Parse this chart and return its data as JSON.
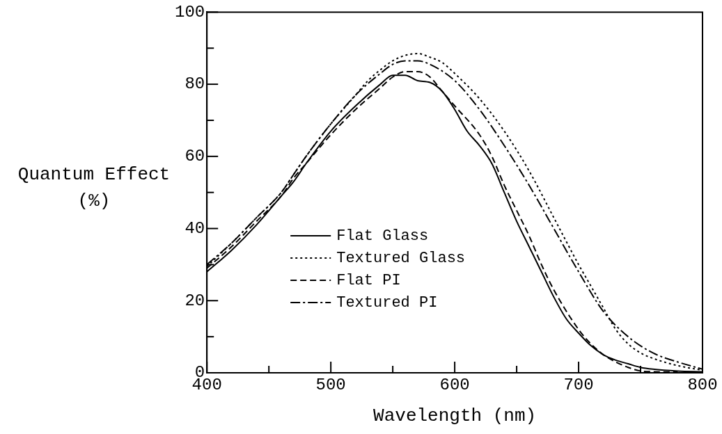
{
  "chart_data": {
    "type": "line",
    "xlabel": "Wavelength (nm)",
    "ylabel": "Quantum Effect (%)",
    "xlim": [
      400,
      800
    ],
    "ylim": [
      0,
      100
    ],
    "xticks": [
      400,
      {
        "value": 450,
        "label": null
      },
      500,
      {
        "value": 550,
        "label": null
      },
      600,
      {
        "value": 650,
        "label": null
      },
      700,
      {
        "value": 750,
        "label": null
      },
      800
    ],
    "yticks": [
      0,
      {
        "value": 10,
        "label": null
      },
      20,
      {
        "value": 30,
        "label": null
      },
      40,
      {
        "value": 50,
        "label": null
      },
      60,
      {
        "value": 70,
        "label": null
      },
      80,
      {
        "value": 90,
        "label": null
      },
      100
    ],
    "grid": false,
    "legend": "left",
    "marker": "none",
    "series": [
      {
        "name": "Flat Glass",
        "color": "#000000",
        "line_style": "solid",
        "x": [
          400,
          420,
          440,
          460,
          470,
          480,
          500,
          520,
          540,
          550,
          560,
          570,
          580,
          590,
          600,
          610,
          620,
          630,
          640,
          650,
          660,
          670,
          680,
          690,
          700,
          710,
          720,
          730,
          740,
          750,
          760,
          780,
          800
        ],
        "values": [
          28,
          34,
          41,
          49,
          53,
          58,
          67,
          74,
          80,
          82.5,
          82.5,
          81,
          80.5,
          78,
          73,
          67,
          63,
          58,
          50,
          42,
          35,
          28,
          21,
          15,
          11,
          7.5,
          5,
          3.5,
          2.5,
          1.5,
          1,
          0.5,
          0.3
        ]
      },
      {
        "name": "Textured Glass",
        "color": "#000000",
        "line_style": "dotted",
        "x": [
          400,
          420,
          440,
          460,
          470,
          480,
          500,
          520,
          530,
          540,
          550,
          560,
          570,
          580,
          590,
          600,
          620,
          640,
          660,
          680,
          700,
          710,
          720,
          730,
          740,
          750,
          760,
          780,
          800
        ],
        "values": [
          29.5,
          36,
          43,
          50,
          55,
          60,
          69,
          77,
          81,
          84,
          86.5,
          88,
          88.5,
          87.5,
          86,
          83,
          76,
          67,
          56,
          43,
          30,
          24,
          18,
          12,
          8,
          5.5,
          4,
          2,
          0.7
        ]
      },
      {
        "name": "Flat PI",
        "color": "#000000",
        "line_style": "dashed",
        "x": [
          400,
          420,
          440,
          460,
          470,
          480,
          500,
          520,
          540,
          550,
          560,
          570,
          580,
          590,
          600,
          620,
          630,
          640,
          650,
          660,
          670,
          680,
          700,
          710,
          720,
          730,
          740,
          750,
          760,
          780
        ],
        "values": [
          29,
          35,
          42,
          49,
          54,
          58,
          66,
          73,
          79,
          82,
          83.5,
          83.5,
          82,
          78,
          74,
          66,
          60,
          52,
          45,
          38,
          30,
          23,
          12,
          8,
          5,
          3,
          1.5,
          0.5,
          0.3,
          0.2
        ]
      },
      {
        "name": "Textured PI",
        "color": "#000000",
        "line_style": "dashdot",
        "x": [
          400,
          420,
          440,
          460,
          470,
          480,
          500,
          520,
          540,
          550,
          560,
          570,
          580,
          600,
          620,
          640,
          660,
          680,
          700,
          720,
          740,
          760,
          780,
          800
        ],
        "values": [
          30,
          36,
          43,
          50,
          55,
          60,
          69,
          77,
          83,
          85.5,
          86.5,
          86.5,
          85.5,
          81,
          73,
          63,
          52,
          40,
          28,
          17,
          10,
          5.5,
          3,
          1
        ]
      }
    ]
  }
}
